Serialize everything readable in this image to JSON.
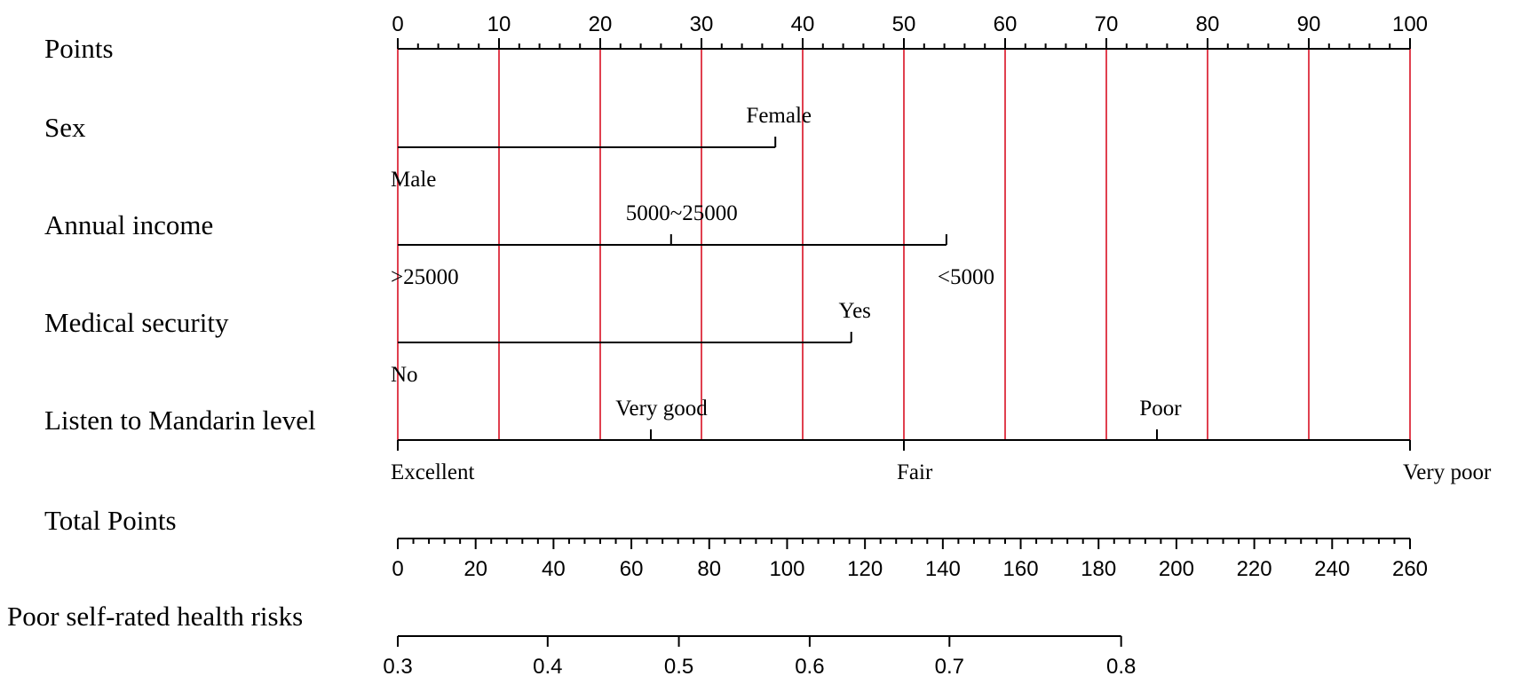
{
  "chart_data": {
    "type": "nomogram",
    "points_axis": {
      "label": "Points",
      "min": 0,
      "max": 100,
      "major_ticks": [
        0,
        10,
        20,
        30,
        40,
        50,
        60,
        70,
        80,
        90,
        100
      ],
      "minor_step": 2
    },
    "variables": [
      {
        "name": "Sex",
        "levels": [
          {
            "label": "Male",
            "points": 0,
            "label_side": "below"
          },
          {
            "label": "Female",
            "points": 37.3,
            "label_side": "above"
          }
        ]
      },
      {
        "name": "Annual income",
        "levels": [
          {
            "label": ">25000",
            "points": 0,
            "label_side": "below"
          },
          {
            "label": "5000~25000",
            "points": 27,
            "label_side": "above"
          },
          {
            "label": "<5000",
            "points": 54.2,
            "label_side": "below"
          }
        ]
      },
      {
        "name": "Medical security",
        "levels": [
          {
            "label": "No",
            "points": 0,
            "label_side": "below"
          },
          {
            "label": "Yes",
            "points": 44.8,
            "label_side": "above"
          }
        ]
      },
      {
        "name": "Listen to Mandarin level",
        "levels": [
          {
            "label": "Excellent",
            "points": 0,
            "label_side": "below"
          },
          {
            "label": "Very good",
            "points": 25,
            "label_side": "above"
          },
          {
            "label": "Fair",
            "points": 50,
            "label_side": "below"
          },
          {
            "label": "Poor",
            "points": 75,
            "label_side": "above"
          },
          {
            "label": "Very poor",
            "points": 100,
            "label_side": "below"
          }
        ]
      }
    ],
    "total_points_axis": {
      "label": "Total Points",
      "min": 0,
      "max": 260,
      "major_ticks": [
        0,
        20,
        40,
        60,
        80,
        100,
        120,
        140,
        160,
        180,
        200,
        220,
        240,
        260
      ],
      "minor_step": 4
    },
    "risk_axis": {
      "label": "Poor self-rated health risks",
      "ticks": [
        {
          "label": "0.3",
          "total_points": 0
        },
        {
          "label": "0.4",
          "total_points": 38.5
        },
        {
          "label": "0.5",
          "total_points": 72.2
        },
        {
          "label": "0.6",
          "total_points": 105.8
        },
        {
          "label": "0.7",
          "total_points": 141.7
        },
        {
          "label": "0.8",
          "total_points": 185.8
        }
      ]
    },
    "reference_lines": {
      "at_points": [
        0,
        10,
        20,
        30,
        40,
        50,
        60,
        70,
        80,
        90,
        100
      ],
      "color": "#e0404f"
    },
    "axis_color": "#000000"
  }
}
